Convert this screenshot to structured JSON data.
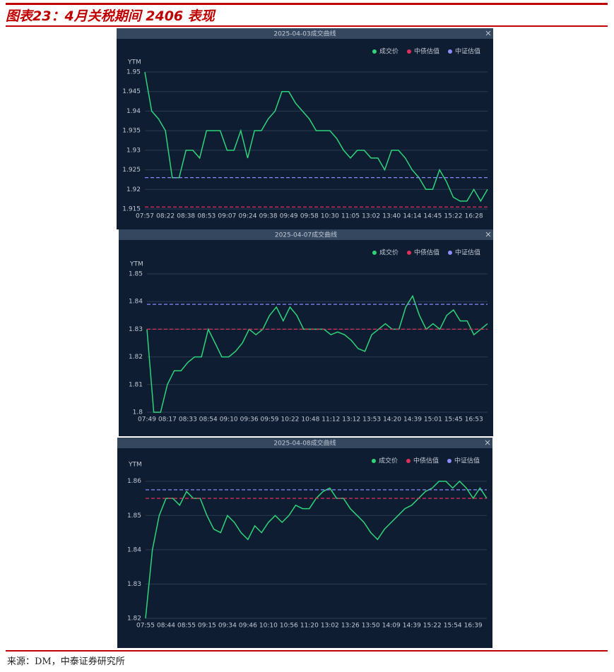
{
  "title": "图表23：4月关税期间 2406 表现",
  "source": "来源：DM，中泰证券研究所",
  "chart_data": [
    {
      "type": "line",
      "title": "2025-04-03成交曲线",
      "ylabel": "YTM",
      "categories": [
        "07:57",
        null,
        null,
        "08:22",
        null,
        null,
        "08:38",
        null,
        null,
        "08:53",
        null,
        null,
        "09:07",
        null,
        null,
        "09:24",
        null,
        null,
        "09:38",
        null,
        null,
        "09:49",
        null,
        null,
        "09:58",
        null,
        null,
        "10:30",
        null,
        null,
        "11:05",
        null,
        null,
        "13:02",
        null,
        null,
        "13:40",
        null,
        null,
        "14:14",
        null,
        null,
        "14:45",
        null,
        null,
        "15:22",
        null,
        null,
        "16:28",
        null,
        null
      ],
      "series": [
        {
          "name": "成交价",
          "color": "#2ed47a",
          "values": [
            1.95,
            1.94,
            1.938,
            1.935,
            1.923,
            1.923,
            1.93,
            1.93,
            1.928,
            1.935,
            1.935,
            1.935,
            1.93,
            1.93,
            1.935,
            1.928,
            1.935,
            1.935,
            1.938,
            1.94,
            1.945,
            1.945,
            1.942,
            1.94,
            1.938,
            1.935,
            1.935,
            1.935,
            1.933,
            1.93,
            1.928,
            1.93,
            1.93,
            1.928,
            1.928,
            1.925,
            1.93,
            1.93,
            1.928,
            1.925,
            1.923,
            1.92,
            1.92,
            1.925,
            1.922,
            1.918,
            1.917,
            1.917,
            1.92,
            1.917,
            1.92
          ]
        },
        {
          "name": "中债估值",
          "color": "#e0305a",
          "value": 1.9155,
          "dashed": true
        },
        {
          "name": "中证估值",
          "color": "#8c8cff",
          "value": 1.923,
          "dashed": true
        }
      ],
      "ylim": [
        1.915,
        1.95
      ],
      "yticks": [
        1.915,
        1.92,
        1.925,
        1.93,
        1.935,
        1.94,
        1.945,
        1.95
      ],
      "grid": true,
      "legend": "top-right"
    },
    {
      "type": "line",
      "title": "2025-04-07成交曲线",
      "ylabel": "YTM",
      "categories": [
        "07:49",
        null,
        null,
        "08:17",
        null,
        null,
        "08:33",
        null,
        null,
        "08:54",
        null,
        null,
        "09:10",
        null,
        null,
        "09:36",
        null,
        null,
        "09:59",
        null,
        null,
        "10:22",
        null,
        null,
        "10:48",
        null,
        null,
        "11:12",
        null,
        null,
        "13:12",
        null,
        null,
        "13:53",
        null,
        null,
        "14:20",
        null,
        null,
        "14:39",
        null,
        null,
        "15:01",
        null,
        null,
        "15:45",
        null,
        null,
        "16:53",
        null,
        null
      ],
      "series": [
        {
          "name": "成交价",
          "color": "#2ed47a",
          "values": [
            1.83,
            1.8,
            1.8,
            1.81,
            1.815,
            1.815,
            1.818,
            1.82,
            1.82,
            1.83,
            1.825,
            1.82,
            1.82,
            1.822,
            1.825,
            1.83,
            1.828,
            1.83,
            1.835,
            1.838,
            1.833,
            1.838,
            1.835,
            1.83,
            1.83,
            1.83,
            1.83,
            1.828,
            1.829,
            1.828,
            1.826,
            1.823,
            1.822,
            1.828,
            1.83,
            1.832,
            1.83,
            1.83,
            1.838,
            1.842,
            1.835,
            1.83,
            1.832,
            1.83,
            1.835,
            1.837,
            1.833,
            1.833,
            1.828,
            1.83,
            1.832
          ]
        },
        {
          "name": "中债估值",
          "color": "#e0305a",
          "value": 1.83,
          "dashed": true
        },
        {
          "name": "中证估值",
          "color": "#8c8cff",
          "value": 1.839,
          "dashed": true
        }
      ],
      "ylim": [
        1.8,
        1.85
      ],
      "yticks": [
        1.8,
        1.81,
        1.82,
        1.83,
        1.84,
        1.85
      ],
      "grid": true,
      "legend": "top-right"
    },
    {
      "type": "line",
      "title": "2025-04-08成交曲线",
      "ylabel": "YTM",
      "categories": [
        "07:55",
        null,
        null,
        "08:44",
        null,
        null,
        "08:55",
        null,
        null,
        "09:15",
        null,
        null,
        "09:34",
        null,
        null,
        "09:46",
        null,
        null,
        "10:10",
        null,
        null,
        "10:56",
        null,
        null,
        "11:20",
        null,
        null,
        "13:02",
        null,
        null,
        "13:26",
        null,
        null,
        "13:50",
        null,
        null,
        "14:09",
        null,
        null,
        "14:39",
        null,
        null,
        "15:22",
        null,
        null,
        "15:54",
        null,
        null,
        "16:39",
        null,
        null
      ],
      "series": [
        {
          "name": "成交价",
          "color": "#2ed47a",
          "values": [
            1.82,
            1.84,
            1.85,
            1.855,
            1.855,
            1.853,
            1.857,
            1.855,
            1.855,
            1.85,
            1.846,
            1.845,
            1.85,
            1.848,
            1.845,
            1.843,
            1.847,
            1.845,
            1.848,
            1.85,
            1.848,
            1.85,
            1.853,
            1.852,
            1.852,
            1.855,
            1.857,
            1.858,
            1.855,
            1.855,
            1.852,
            1.85,
            1.848,
            1.845,
            1.843,
            1.846,
            1.848,
            1.85,
            1.852,
            1.853,
            1.855,
            1.857,
            1.858,
            1.86,
            1.86,
            1.858,
            1.86,
            1.858,
            1.855,
            1.858,
            1.855
          ]
        },
        {
          "name": "中债估值",
          "color": "#e0305a",
          "value": 1.855,
          "dashed": true
        },
        {
          "name": "中证估值",
          "color": "#8c8cff",
          "value": 1.8575,
          "dashed": true
        }
      ],
      "ylim": [
        1.82,
        1.862
      ],
      "yticks": [
        1.82,
        1.83,
        1.84,
        1.85,
        1.86
      ],
      "grid": true,
      "legend": "top-right"
    }
  ]
}
